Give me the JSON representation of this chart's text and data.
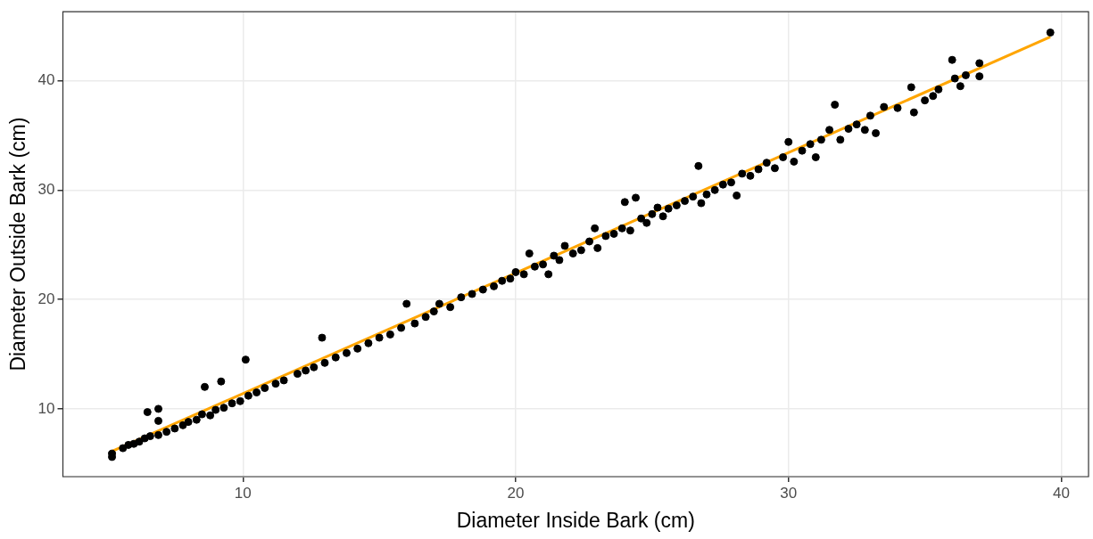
{
  "chart_data": {
    "type": "scatter",
    "xlabel": "Diameter Inside Bark (cm)",
    "ylabel": "Diameter Outside Bark (cm)",
    "xlim": [
      3.4,
      41.0
    ],
    "ylim": [
      3.8,
      46.3
    ],
    "xticks": [
      10,
      20,
      30,
      40
    ],
    "yticks": [
      10,
      20,
      30,
      40
    ],
    "grid": true,
    "legend": false,
    "marker": "circle",
    "series": [
      {
        "color": "#000000",
        "x": [
          5.2,
          5.2,
          5.6,
          5.8,
          6.0,
          6.2,
          6.4,
          6.5,
          6.6,
          6.9,
          6.9,
          6.9,
          7.2,
          7.5,
          7.8,
          8.0,
          8.3,
          8.5,
          8.6,
          8.8,
          9.0,
          9.2,
          9.3,
          9.6,
          9.9,
          10.1,
          10.2,
          10.5,
          10.8,
          11.2,
          11.5,
          12.0,
          12.3,
          12.6,
          12.9,
          13.0,
          13.4,
          13.8,
          14.2,
          14.6,
          15.0,
          15.4,
          15.8,
          16.0,
          16.3,
          16.7,
          17.0,
          17.2,
          17.6,
          18.0,
          18.4,
          18.8,
          19.2,
          19.5,
          19.8,
          20.0,
          20.3,
          20.5,
          20.7,
          21.0,
          21.2,
          21.4,
          21.6,
          21.8,
          22.1,
          22.4,
          22.7,
          22.9,
          23.0,
          23.3,
          23.6,
          23.9,
          24.0,
          24.2,
          24.4,
          24.6,
          24.8,
          25.0,
          25.2,
          25.4,
          25.6,
          25.9,
          26.2,
          26.5,
          26.7,
          26.8,
          27.0,
          27.3,
          27.6,
          27.9,
          28.1,
          28.3,
          28.6,
          28.9,
          29.2,
          29.5,
          29.8,
          30.0,
          30.2,
          30.5,
          30.8,
          31.0,
          31.2,
          31.5,
          31.7,
          31.9,
          32.2,
          32.5,
          32.8,
          33.0,
          33.2,
          33.5,
          34.0,
          34.5,
          34.6,
          35.0,
          35.3,
          35.5,
          36.0,
          36.1,
          36.3,
          36.5,
          37.0,
          37.0,
          39.6
        ],
        "values": [
          5.6,
          5.9,
          6.4,
          6.7,
          6.8,
          7.0,
          7.3,
          9.7,
          7.5,
          7.6,
          10.0,
          8.9,
          7.9,
          8.2,
          8.5,
          8.8,
          9.0,
          9.5,
          12.0,
          9.4,
          9.9,
          12.5,
          10.1,
          10.5,
          10.7,
          14.5,
          11.2,
          11.5,
          11.9,
          12.3,
          12.6,
          13.2,
          13.5,
          13.8,
          16.5,
          14.2,
          14.7,
          15.1,
          15.5,
          16.0,
          16.5,
          16.8,
          17.4,
          19.6,
          17.8,
          18.4,
          18.9,
          19.6,
          19.3,
          20.2,
          20.5,
          20.9,
          21.2,
          21.7,
          21.9,
          22.5,
          22.3,
          24.2,
          23.0,
          23.2,
          22.3,
          24.0,
          23.6,
          24.9,
          24.2,
          24.5,
          25.3,
          26.5,
          24.7,
          25.8,
          26.0,
          26.5,
          28.9,
          26.3,
          29.3,
          27.4,
          27.0,
          27.8,
          28.4,
          27.6,
          28.3,
          28.6,
          29.0,
          29.4,
          32.2,
          28.8,
          29.6,
          30.0,
          30.5,
          30.7,
          29.5,
          31.5,
          31.3,
          31.9,
          32.5,
          32.0,
          33.0,
          34.4,
          32.6,
          33.6,
          34.2,
          33.0,
          34.6,
          35.5,
          37.8,
          34.6,
          35.6,
          36.0,
          35.5,
          36.8,
          35.2,
          37.6,
          37.5,
          39.4,
          37.1,
          38.2,
          38.6,
          39.2,
          41.9,
          40.2,
          39.5,
          40.5,
          41.6,
          40.4,
          44.4
        ]
      },
      {
        "type": "line",
        "marker": "none",
        "color": "#ffa500",
        "x": [
          5.1,
          39.6
        ],
        "values": [
          6.0,
          44.0
        ]
      }
    ]
  }
}
